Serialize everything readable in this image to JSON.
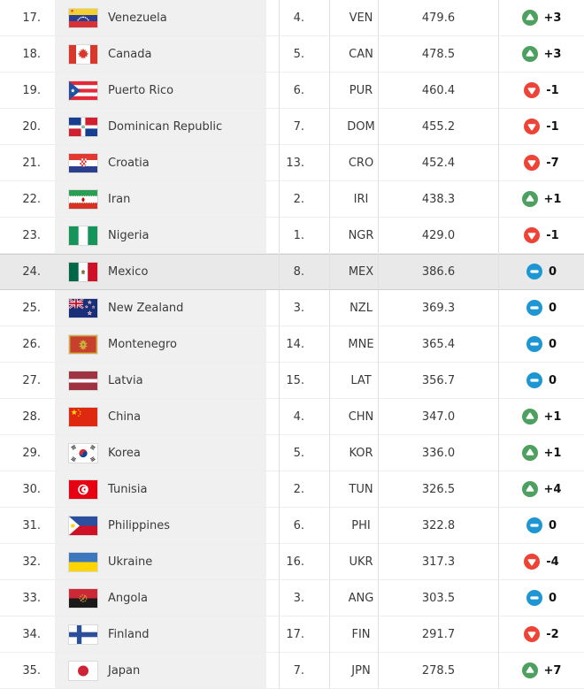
{
  "table_name": "world-ranking",
  "colors": {
    "trend_up": "#4da05f",
    "trend_down": "#ee4337",
    "trend_same": "#1e96d4",
    "row_highlight": "#e9e9e9",
    "country_column_bg": "#f0f0f0",
    "column_border": "#e0e0e0",
    "row_border": "#ededed",
    "text": "#3a3a3a",
    "change_text": "#111111"
  },
  "icons": {
    "trend_up": "up-triangle-in-green-circle",
    "trend_down": "down-triangle-in-red-circle",
    "trend_same": "dash-in-blue-circle",
    "flag": "country-flag"
  },
  "rows": [
    {
      "rank": "17.",
      "country": "Venezuela",
      "flag": "venezuela",
      "cont_rank": "4.",
      "code": "VEN",
      "points": "479.6",
      "change": "+3",
      "trend": "up",
      "highlighted": false
    },
    {
      "rank": "18.",
      "country": "Canada",
      "flag": "canada",
      "cont_rank": "5.",
      "code": "CAN",
      "points": "478.5",
      "change": "+3",
      "trend": "up",
      "highlighted": false
    },
    {
      "rank": "19.",
      "country": "Puerto Rico",
      "flag": "puerto-rico",
      "cont_rank": "6.",
      "code": "PUR",
      "points": "460.4",
      "change": "-1",
      "trend": "down",
      "highlighted": false
    },
    {
      "rank": "20.",
      "country": "Dominican Republic",
      "flag": "dominican-republic",
      "cont_rank": "7.",
      "code": "DOM",
      "points": "455.2",
      "change": "-1",
      "trend": "down",
      "highlighted": false
    },
    {
      "rank": "21.",
      "country": "Croatia",
      "flag": "croatia",
      "cont_rank": "13.",
      "code": "CRO",
      "points": "452.4",
      "change": "-7",
      "trend": "down",
      "highlighted": false
    },
    {
      "rank": "22.",
      "country": "Iran",
      "flag": "iran",
      "cont_rank": "2.",
      "code": "IRI",
      "points": "438.3",
      "change": "+1",
      "trend": "up",
      "highlighted": false
    },
    {
      "rank": "23.",
      "country": "Nigeria",
      "flag": "nigeria",
      "cont_rank": "1.",
      "code": "NGR",
      "points": "429.0",
      "change": "-1",
      "trend": "down",
      "highlighted": false
    },
    {
      "rank": "24.",
      "country": "Mexico",
      "flag": "mexico",
      "cont_rank": "8.",
      "code": "MEX",
      "points": "386.6",
      "change": "0",
      "trend": "same",
      "highlighted": true
    },
    {
      "rank": "25.",
      "country": "New Zealand",
      "flag": "new-zealand",
      "cont_rank": "3.",
      "code": "NZL",
      "points": "369.3",
      "change": "0",
      "trend": "same",
      "highlighted": false
    },
    {
      "rank": "26.",
      "country": "Montenegro",
      "flag": "montenegro",
      "cont_rank": "14.",
      "code": "MNE",
      "points": "365.4",
      "change": "0",
      "trend": "same",
      "highlighted": false
    },
    {
      "rank": "27.",
      "country": "Latvia",
      "flag": "latvia",
      "cont_rank": "15.",
      "code": "LAT",
      "points": "356.7",
      "change": "0",
      "trend": "same",
      "highlighted": false
    },
    {
      "rank": "28.",
      "country": "China",
      "flag": "china",
      "cont_rank": "4.",
      "code": "CHN",
      "points": "347.0",
      "change": "+1",
      "trend": "up",
      "highlighted": false
    },
    {
      "rank": "29.",
      "country": "Korea",
      "flag": "korea",
      "cont_rank": "5.",
      "code": "KOR",
      "points": "336.0",
      "change": "+1",
      "trend": "up",
      "highlighted": false
    },
    {
      "rank": "30.",
      "country": "Tunisia",
      "flag": "tunisia",
      "cont_rank": "2.",
      "code": "TUN",
      "points": "326.5",
      "change": "+4",
      "trend": "up",
      "highlighted": false
    },
    {
      "rank": "31.",
      "country": "Philippines",
      "flag": "philippines",
      "cont_rank": "6.",
      "code": "PHI",
      "points": "322.8",
      "change": "0",
      "trend": "same",
      "highlighted": false
    },
    {
      "rank": "32.",
      "country": "Ukraine",
      "flag": "ukraine",
      "cont_rank": "16.",
      "code": "UKR",
      "points": "317.3",
      "change": "-4",
      "trend": "down",
      "highlighted": false
    },
    {
      "rank": "33.",
      "country": "Angola",
      "flag": "angola",
      "cont_rank": "3.",
      "code": "ANG",
      "points": "303.5",
      "change": "0",
      "trend": "same",
      "highlighted": false
    },
    {
      "rank": "34.",
      "country": "Finland",
      "flag": "finland",
      "cont_rank": "17.",
      "code": "FIN",
      "points": "291.7",
      "change": "-2",
      "trend": "down",
      "highlighted": false
    },
    {
      "rank": "35.",
      "country": "Japan",
      "flag": "japan",
      "cont_rank": "7.",
      "code": "JPN",
      "points": "278.5",
      "change": "+7",
      "trend": "up",
      "highlighted": false
    }
  ]
}
